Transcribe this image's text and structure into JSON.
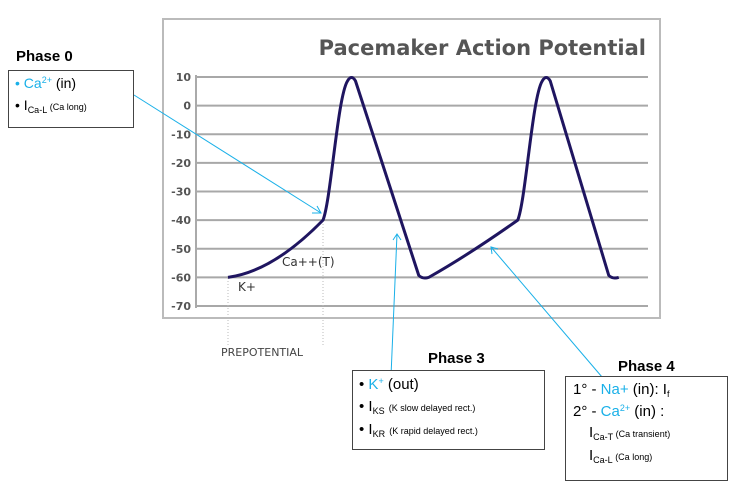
{
  "chart_data": {
    "type": "line",
    "title": "Pacemaker Action Potential",
    "ylim": [
      -70,
      10
    ],
    "yticks": [
      "10",
      "0",
      "-10",
      "-20",
      "-30",
      "-40",
      "-50",
      "-60",
      "-70"
    ],
    "grid": true,
    "series": [
      {
        "points": [
          [
            0,
            -60
          ],
          [
            1,
            -40
          ],
          [
            1.3,
            10
          ],
          [
            2.05,
            -60
          ],
          [
            3.05,
            -40
          ],
          [
            3.35,
            10
          ],
          [
            4.05,
            -60
          ]
        ]
      }
    ],
    "line_color": "#1f1560",
    "annotations": [
      "K+",
      "Ca++(T)",
      "PREPOTENTIAL"
    ]
  },
  "phase0": {
    "title": "Phase 0",
    "l1_ion": "Ca",
    "l1_sup": "2+",
    "l1_rest": " (in)",
    "l2_i": "I",
    "l2_sub": "Ca-L",
    "l2_note": " (Ca long)"
  },
  "phase3": {
    "title": "Phase 3",
    "l1_ion": "K",
    "l1_sup": "+",
    "l1_rest": " (out)",
    "l2_i": "I",
    "l2_sub": "KS",
    "l2_note": "(K slow delayed rect.)",
    "l3_i": "I",
    "l3_sub": "KR",
    "l3_note": "(K rapid delayed rect.)"
  },
  "phase4": {
    "title": "Phase 4",
    "l1_pre": "1° - ",
    "l1_ion": "Na+",
    "l1_rest": " (in): I",
    "l1_sub": "f",
    "l2_pre": "2° - ",
    "l2_ion": "Ca",
    "l2_sup": "2+",
    "l2_rest": " (in) :",
    "l3_i": "I",
    "l3_sub": "Ca-T",
    "l3_note": " (Ca  transient)",
    "l4_i": "I",
    "l4_sub": "Ca-L",
    "l4_note": " (Ca long)"
  },
  "colors": {
    "accent": "#1ab0e8",
    "curve": "#1f1560",
    "grid": "#a8a8a8"
  }
}
